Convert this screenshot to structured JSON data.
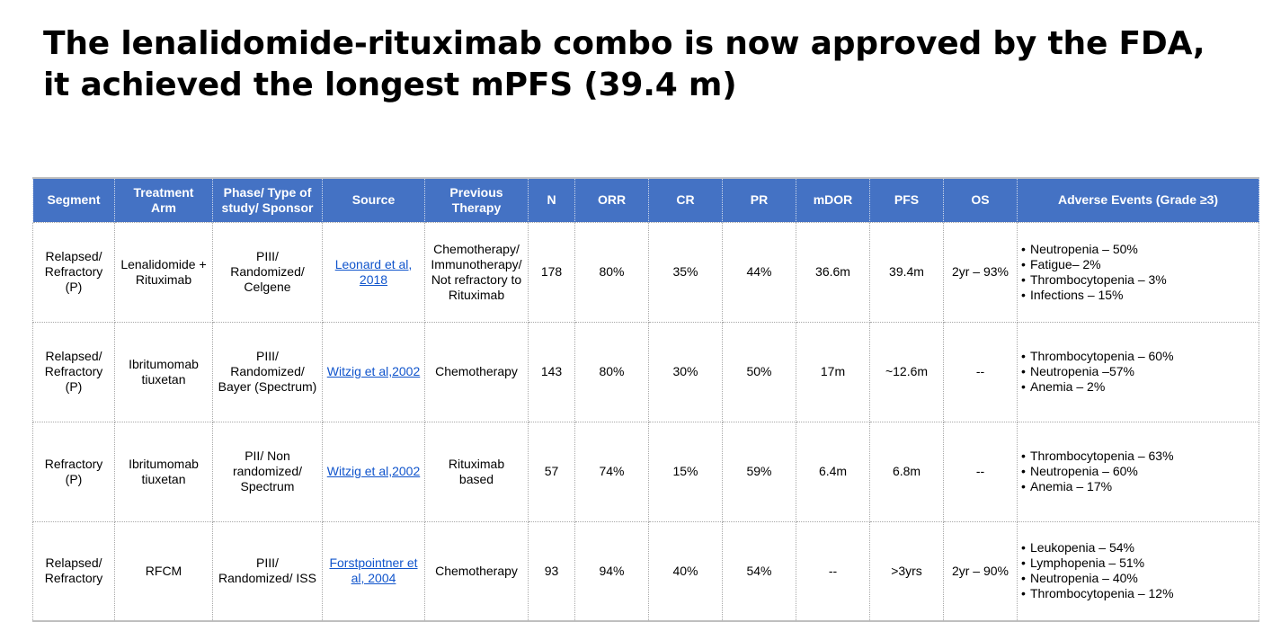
{
  "title": {
    "line1": "The lenalidomide-rituximab combo is now approved by the FDA,",
    "line2": "it achieved the longest mPFS (39.4 m)"
  },
  "table": {
    "headers": [
      [
        "Segment"
      ],
      [
        "Treatment",
        "Arm"
      ],
      [
        "Phase/ Type of",
        "study/ Sponsor"
      ],
      [
        "Source"
      ],
      [
        "Previous",
        "Therapy"
      ],
      [
        "N"
      ],
      [
        "ORR"
      ],
      [
        "CR"
      ],
      [
        "PR"
      ],
      [
        "mDOR"
      ],
      [
        "PFS"
      ],
      [
        "OS"
      ],
      [
        "Adverse Events (Grade ≥3)"
      ]
    ],
    "rows": [
      {
        "segment": [
          "Relapsed/",
          "Refractory",
          "(P)"
        ],
        "arm": [
          "Lenalidomide +",
          "Rituximab"
        ],
        "phase": [
          "PIII/",
          "Randomized/",
          "Celgene"
        ],
        "source": [
          "Leonard et al,",
          "2018"
        ],
        "previous": [
          "Chemotherapy/",
          "Immunotherapy/",
          "Not refractory to",
          "Rituximab"
        ],
        "n": "178",
        "orr": "80%",
        "cr": "35%",
        "pr": "44%",
        "mdor": "36.6m",
        "pfs": "39.4m",
        "os": "2yr – 93%",
        "ae": [
          "Neutropenia – 50%",
          "Fatigue– 2%",
          "Thrombocytopenia – 3%",
          "Infections – 15%"
        ]
      },
      {
        "segment": [
          "Relapsed/",
          "Refractory",
          "(P)"
        ],
        "arm": [
          "Ibritumomab",
          "tiuxetan"
        ],
        "phase": [
          "PIII/",
          "Randomized/",
          "Bayer (Spectrum)"
        ],
        "source": [
          "Witzig et al,2002"
        ],
        "previous": [
          "Chemotherapy"
        ],
        "n": "143",
        "orr": "80%",
        "cr": "30%",
        "pr": "50%",
        "mdor": "17m",
        "pfs": "~12.6m",
        "os": "--",
        "ae": [
          "Thrombocytopenia – 60%",
          "Neutropenia –57%",
          "Anemia – 2%"
        ]
      },
      {
        "segment": [
          "Refractory",
          "(P)"
        ],
        "arm": [
          "Ibritumomab",
          "tiuxetan"
        ],
        "phase": [
          "PII/ Non",
          "randomized/",
          "Spectrum"
        ],
        "source": [
          "Witzig et al,2002"
        ],
        "previous": [
          "Rituximab",
          "based"
        ],
        "n": "57",
        "orr": "74%",
        "cr": "15%",
        "pr": "59%",
        "mdor": "6.4m",
        "pfs": "6.8m",
        "os": "--",
        "ae": [
          "Thrombocytopenia – 63%",
          "Neutropenia – 60%",
          "Anemia – 17%"
        ]
      },
      {
        "segment": [
          "Relapsed/",
          "Refractory"
        ],
        "arm": [
          "RFCM"
        ],
        "phase": [
          "PIII/",
          "Randomized/ ISS"
        ],
        "source": [
          "Forstpointner et",
          "al, 2004"
        ],
        "previous": [
          "Chemotherapy"
        ],
        "n": "93",
        "orr": "94%",
        "cr": "40%",
        "pr": "54%",
        "mdor": "--",
        "pfs": ">3yrs",
        "os": "2yr – 90%",
        "ae": [
          "Leukopenia – 54%",
          "Lymphopenia – 51%",
          "Neutropenia – 40%",
          "Thrombocytopenia – 12%"
        ]
      }
    ]
  },
  "colors": {
    "header_bg": "#4472c4",
    "header_text": "#ffffff",
    "link": "#1155cc",
    "grid": "#a8a8a8"
  }
}
